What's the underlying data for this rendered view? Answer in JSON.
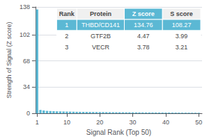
{
  "chart_data": {
    "type": "bar",
    "xlabel": "Signal Rank (Top 50)",
    "ylabel": "Strength of Signal (Z score)",
    "x": [
      1,
      2,
      3,
      4,
      5,
      6,
      7,
      8,
      9,
      10,
      11,
      12,
      13,
      14,
      15,
      16,
      17,
      18,
      19,
      20,
      21,
      22,
      23,
      24,
      25,
      26,
      27,
      28,
      29,
      30,
      31,
      32,
      33,
      34,
      35,
      36,
      37,
      38,
      39,
      40,
      41,
      42,
      43,
      44,
      45,
      46,
      47,
      48,
      49,
      50
    ],
    "values": [
      134.76,
      4.47,
      3.78,
      3.2,
      3.0,
      2.8,
      2.6,
      2.5,
      2.4,
      2.3,
      2.2,
      2.1,
      2.0,
      1.95,
      1.9,
      1.85,
      1.8,
      1.75,
      1.7,
      1.65,
      1.6,
      1.55,
      1.5,
      1.45,
      1.4,
      1.38,
      1.35,
      1.3,
      1.28,
      1.25,
      1.22,
      1.2,
      1.18,
      1.15,
      1.12,
      1.1,
      1.08,
      1.05,
      1.03,
      1.0,
      0.98,
      0.95,
      0.93,
      0.9,
      0.88,
      0.85,
      0.83,
      0.8,
      0.78,
      0.75
    ],
    "color": "#5bb8d4",
    "xlim": [
      0.5,
      51
    ],
    "xticks": [
      1,
      10,
      20,
      30,
      40,
      50
    ],
    "ylim": [
      0,
      138
    ],
    "yticks": [
      0,
      34,
      68,
      102,
      138
    ],
    "grid": true,
    "table": [
      [
        "Rank",
        "Protein",
        "Z score",
        "S score"
      ],
      [
        "1",
        "THBD/CD141",
        "134.76",
        "108.27"
      ],
      [
        "2",
        "GTF2B",
        "4.47",
        "3.99"
      ],
      [
        "3",
        "VECR",
        "3.78",
        "3.21"
      ]
    ]
  }
}
